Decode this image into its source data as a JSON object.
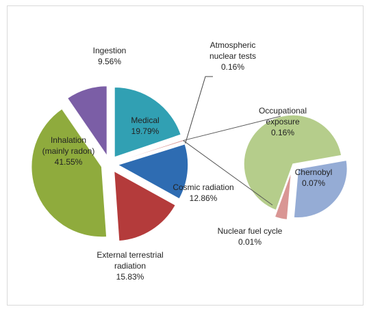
{
  "chart_data": {
    "type": "pie",
    "categories": [
      "Medical",
      "Atmospheric nuclear tests",
      "Cosmic radiation",
      "External terrestrial radiation",
      "Inhalation (mainly radon)",
      "Ingestion"
    ],
    "values": [
      19.79,
      0.16,
      12.86,
      15.83,
      41.55,
      9.56
    ],
    "value_labels": [
      "19.79%",
      "0.16%",
      "12.86%",
      "15.83%",
      "41.55%",
      "9.56%"
    ],
    "colors": [
      "#31a0b3",
      "#c0504d",
      "#2e6cb2",
      "#b43b3b",
      "#8fab3d",
      "#7b5ea6"
    ],
    "secondary": {
      "categories": [
        "Occupational exposure",
        "Chernobyl",
        "Nuclear fuel cycle"
      ],
      "values": [
        0.16,
        0.07,
        0.01
      ],
      "value_labels": [
        "0.16%",
        "0.07%",
        "0.01%"
      ],
      "colors": [
        "#b5cd8b",
        "#95acd5",
        "#d99694"
      ]
    }
  }
}
